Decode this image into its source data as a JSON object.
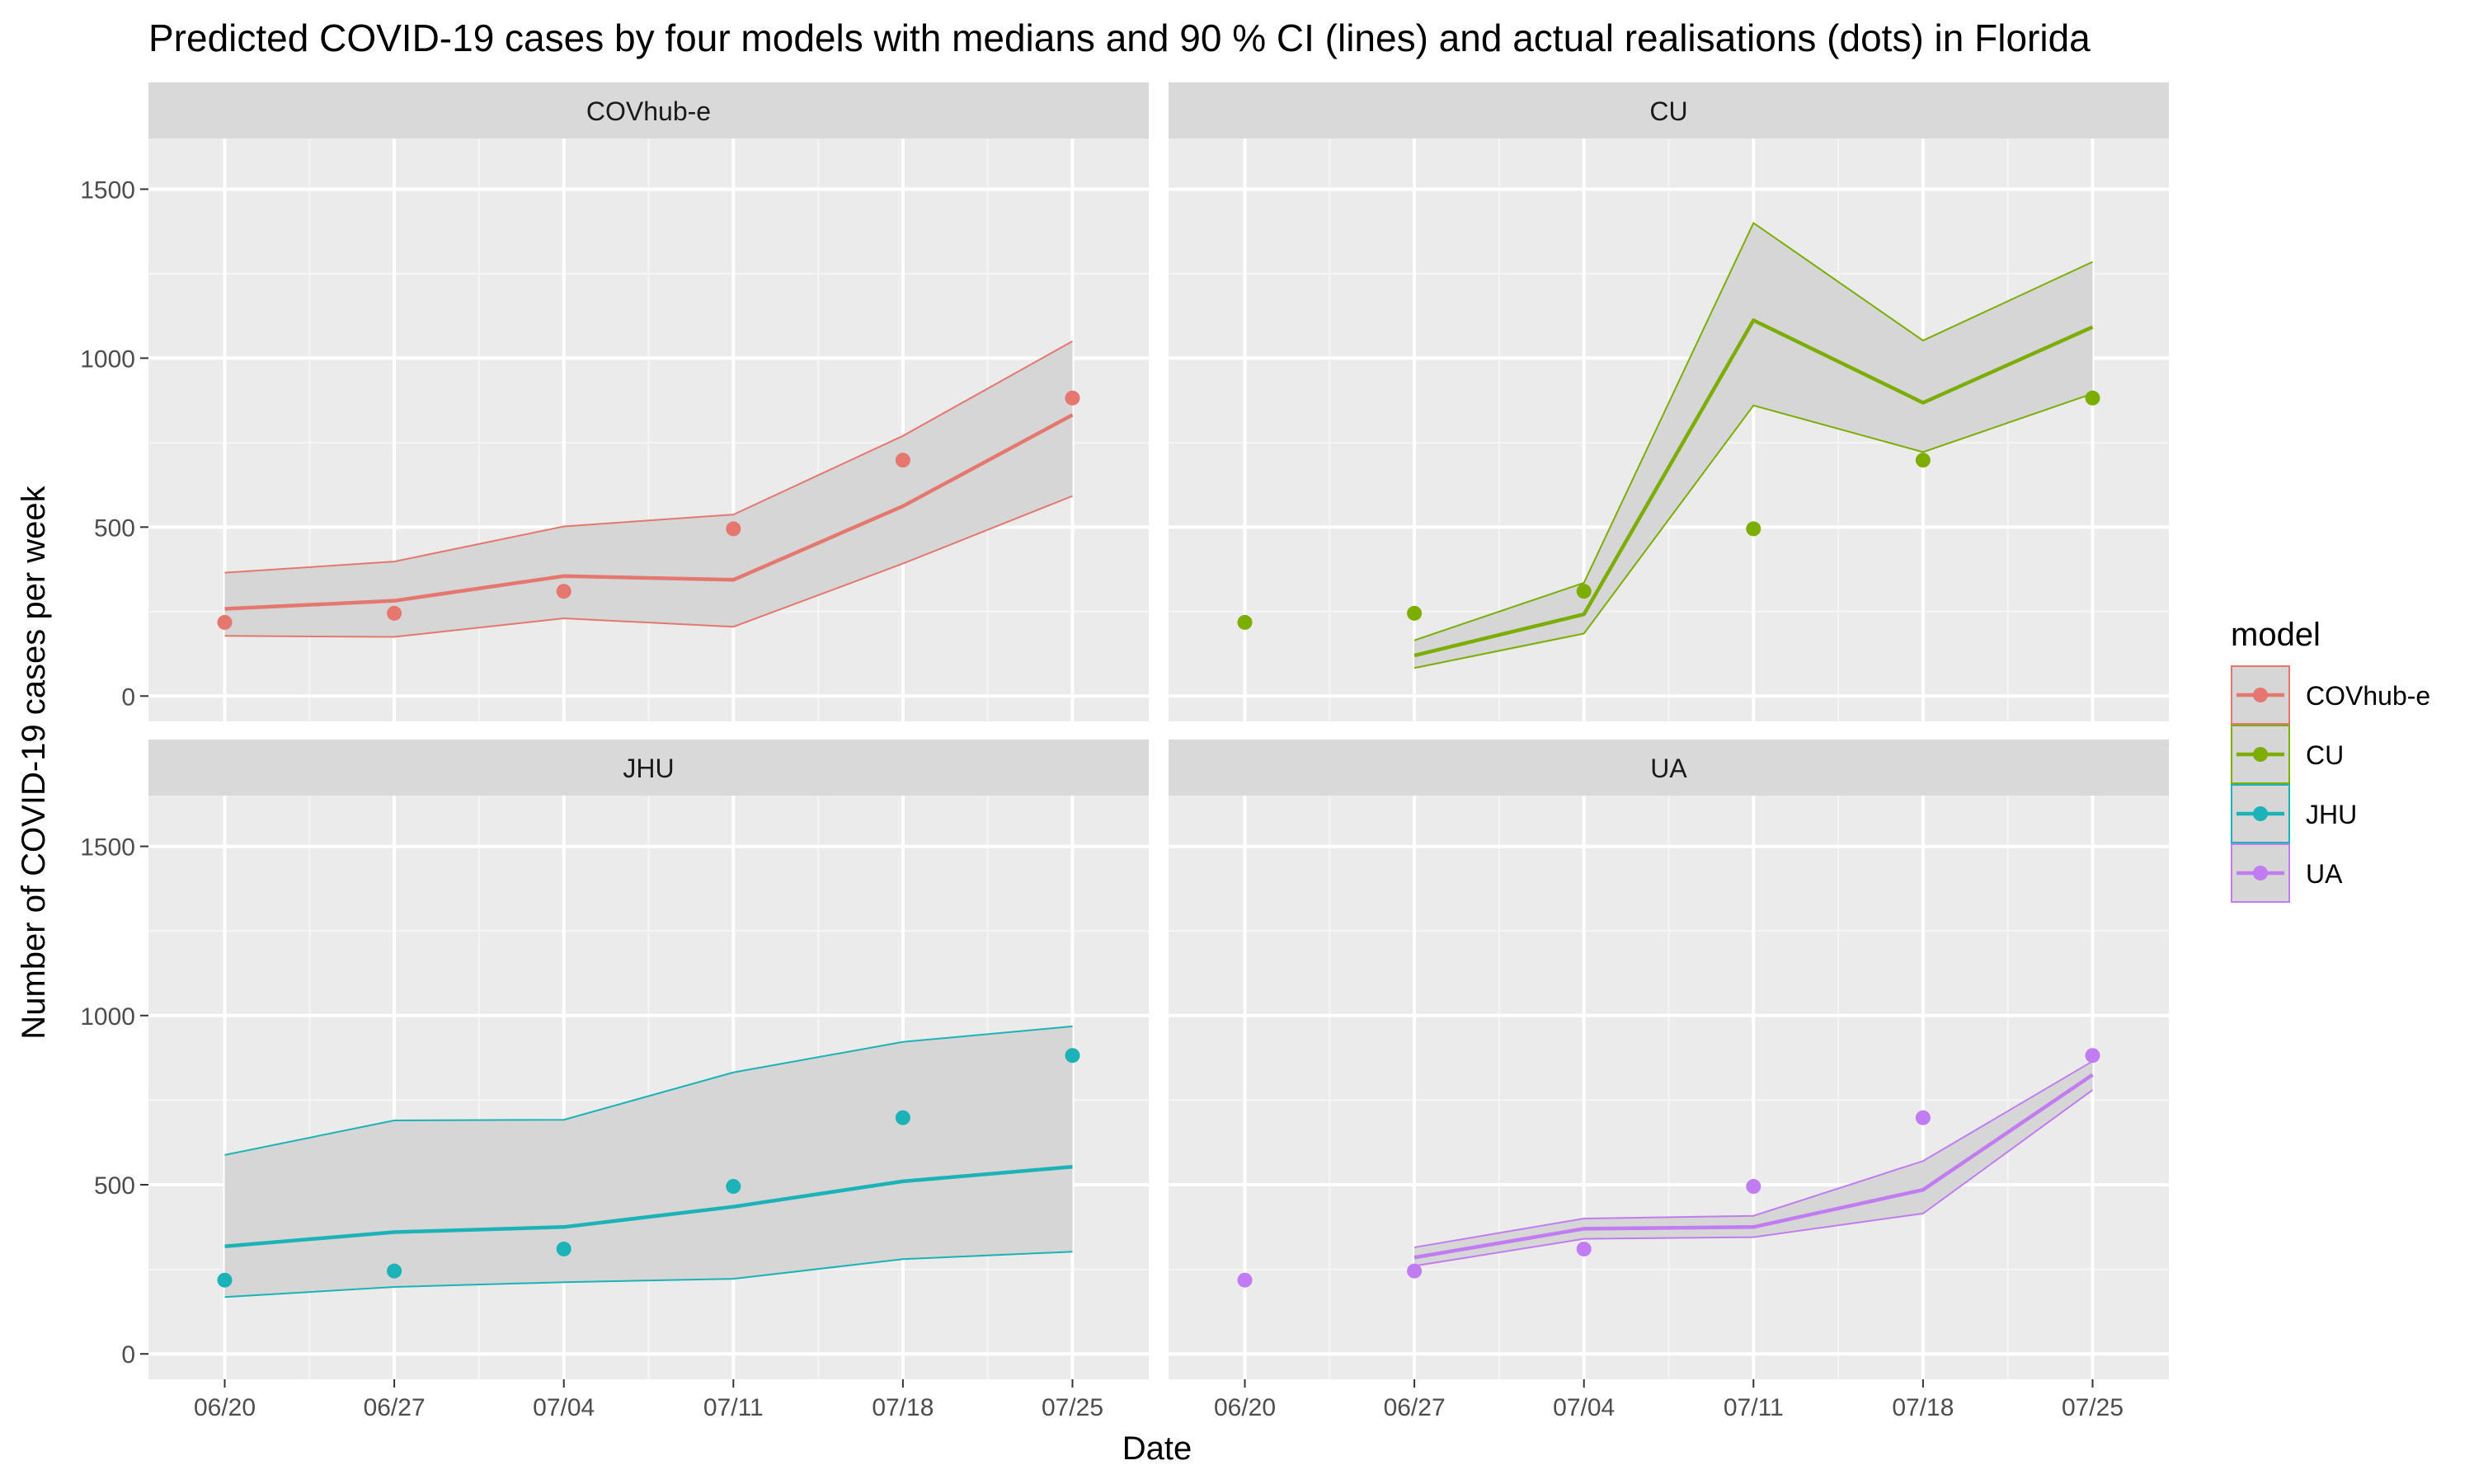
{
  "chart_data": {
    "type": "line",
    "title": "Predicted COVID-19 cases by four models with medians and 90 % CI (lines) and actual realisations (dots) in Florida",
    "xlabel": "Date",
    "ylabel": "Number of COVID-19 cases per week",
    "x_ticks": [
      "06/20",
      "06/27",
      "07/04",
      "07/11",
      "07/18",
      "07/25"
    ],
    "y_ticks": [
      0,
      500,
      1000,
      1500
    ],
    "ylim": [
      -75,
      1650
    ],
    "grid": true,
    "legend": {
      "title": "model",
      "position": "right"
    },
    "actual": [
      218,
      245,
      310,
      495,
      698,
      882
    ],
    "panels": [
      {
        "name": "COVhub-e",
        "color": "#E5776F",
        "x": [
          "06/20",
          "06/27",
          "07/04",
          "07/11",
          "07/18",
          "07/25"
        ],
        "median": [
          258,
          282,
          355,
          344,
          562,
          832
        ],
        "lower": [
          178,
          175,
          230,
          205,
          392,
          592
        ],
        "upper": [
          365,
          398,
          502,
          537,
          770,
          1050
        ]
      },
      {
        "name": "CU",
        "color": "#7CAE00",
        "x": [
          "06/27",
          "07/04",
          "07/11",
          "07/18",
          "07/25"
        ],
        "median": [
          120,
          242,
          1112,
          868,
          1092
        ],
        "lower": [
          83,
          185,
          860,
          722,
          895
        ],
        "upper": [
          165,
          335,
          1400,
          1052,
          1285
        ]
      },
      {
        "name": "JHU",
        "color": "#1BB3B7",
        "x": [
          "06/20",
          "06/27",
          "07/04",
          "07/11",
          "07/18",
          "07/25"
        ],
        "median": [
          318,
          360,
          375,
          435,
          510,
          553
        ],
        "lower": [
          168,
          198,
          212,
          222,
          280,
          302
        ],
        "upper": [
          588,
          690,
          692,
          832,
          922,
          968
        ]
      },
      {
        "name": "UA",
        "color": "#C07CF0",
        "x": [
          "06/27",
          "07/04",
          "07/11",
          "07/18",
          "07/25"
        ],
        "median": [
          285,
          370,
          375,
          485,
          825
        ],
        "lower": [
          260,
          340,
          345,
          415,
          780
        ],
        "upper": [
          315,
          400,
          408,
          570,
          865
        ]
      }
    ]
  }
}
